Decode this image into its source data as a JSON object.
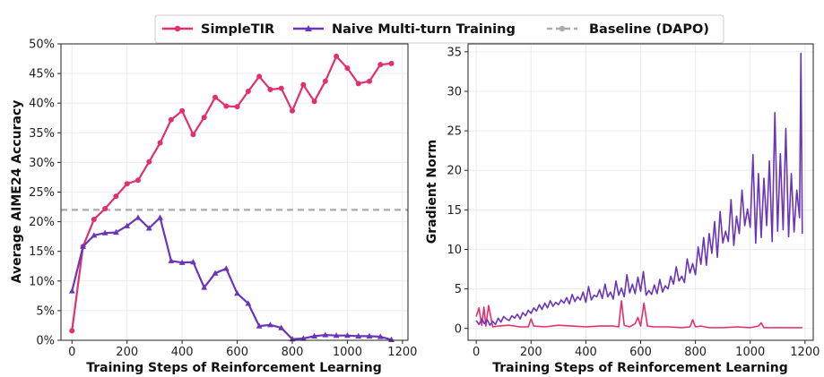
{
  "legend": {
    "items": [
      {
        "label": "SimpleTIR",
        "color": "#e0306e",
        "style": "line-marker-circle"
      },
      {
        "label": "Naive Multi-turn Training",
        "color": "#6a35b8",
        "style": "line-marker-triangle"
      },
      {
        "label": "Baseline (DAPO)",
        "color": "#aaaaaa",
        "style": "dashed-marker-circle"
      }
    ]
  },
  "chart_data": [
    {
      "type": "line",
      "xlabel": "Training Steps of Reinforcement Learning",
      "ylabel": "Average AIME24 Accuracy",
      "xlim": [
        -40,
        1220
      ],
      "ylim": [
        0,
        50
      ],
      "xticks": [
        0,
        200,
        400,
        600,
        800,
        1000,
        1200
      ],
      "yticks": [
        0,
        5,
        10,
        15,
        20,
        25,
        30,
        35,
        40,
        45,
        50
      ],
      "ytick_suffix": "%",
      "grid": true,
      "baseline": {
        "name": "Baseline (DAPO)",
        "value": 22.0,
        "color": "#aaaaaa"
      },
      "series": [
        {
          "name": "SimpleTIR",
          "color": "#e0306e",
          "marker": "circle",
          "x": [
            0,
            40,
            80,
            120,
            160,
            200,
            240,
            280,
            320,
            360,
            400,
            440,
            480,
            520,
            560,
            600,
            640,
            680,
            720,
            760,
            800,
            840,
            880,
            920,
            960,
            1000,
            1040,
            1080,
            1120,
            1160
          ],
          "y": [
            1.6,
            15.8,
            20.4,
            22.2,
            24.3,
            26.4,
            27.0,
            30.1,
            33.3,
            37.2,
            38.7,
            34.7,
            37.6,
            41.0,
            39.5,
            39.4,
            42.0,
            44.5,
            42.3,
            42.5,
            38.7,
            43.1,
            40.3,
            43.7,
            47.9,
            45.9,
            43.3,
            43.7,
            46.5,
            46.7
          ]
        },
        {
          "name": "Naive Multi-turn Training",
          "color": "#6a35b8",
          "marker": "triangle",
          "x": [
            0,
            40,
            80,
            120,
            160,
            200,
            240,
            280,
            320,
            360,
            400,
            440,
            480,
            520,
            560,
            600,
            640,
            680,
            720,
            760,
            800,
            840,
            880,
            920,
            960,
            1000,
            1040,
            1080,
            1120,
            1160
          ],
          "y": [
            8.3,
            15.8,
            17.7,
            18.1,
            18.2,
            19.3,
            20.7,
            18.9,
            20.7,
            13.4,
            13.1,
            13.2,
            8.9,
            11.3,
            12.1,
            7.9,
            6.2,
            2.4,
            2.6,
            2.1,
            0.2,
            0.3,
            0.7,
            0.9,
            0.8,
            0.8,
            0.7,
            0.7,
            0.6,
            0.1
          ]
        }
      ]
    },
    {
      "type": "line",
      "xlabel": "Training Steps of Reinforcement Learning",
      "ylabel": "Gradient Norm",
      "xlim": [
        -30,
        1230
      ],
      "ylim": [
        -1.5,
        36
      ],
      "xticks": [
        0,
        200,
        400,
        600,
        800,
        1000,
        1200
      ],
      "yticks": [
        0,
        5,
        10,
        15,
        20,
        25,
        30,
        35
      ],
      "grid": true,
      "series": [
        {
          "name": "SimpleTIR",
          "color": "#e0306e",
          "x": [
            0,
            10,
            20,
            28,
            35,
            45,
            60,
            80,
            120,
            160,
            190,
            200,
            210,
            250,
            300,
            350,
            400,
            450,
            500,
            520,
            530,
            540,
            560,
            580,
            590,
            600,
            612,
            625,
            650,
            700,
            750,
            780,
            790,
            800,
            820,
            850,
            900,
            950,
            1000,
            1030,
            1040,
            1050,
            1080,
            1120,
            1160,
            1190
          ],
          "y": [
            1.5,
            2.6,
            0.4,
            2.7,
            0.3,
            2.9,
            0.2,
            0.3,
            0.4,
            0.2,
            0.2,
            1.2,
            0.3,
            0.2,
            0.4,
            0.3,
            0.2,
            0.3,
            0.3,
            0.2,
            3.5,
            0.4,
            0.2,
            0.6,
            1.4,
            0.3,
            3.2,
            0.3,
            0.2,
            0.2,
            0.1,
            0.2,
            1.1,
            0.2,
            0.3,
            0.1,
            0.1,
            0.2,
            0.1,
            0.3,
            0.7,
            0.1,
            0.1,
            0.1,
            0.1,
            0.1
          ]
        },
        {
          "name": "Naive Multi-turn Training",
          "color": "#6a35b8",
          "x": [
            0,
            10,
            20,
            30,
            40,
            50,
            60,
            70,
            80,
            90,
            100,
            110,
            120,
            130,
            140,
            150,
            160,
            170,
            180,
            190,
            200,
            210,
            220,
            230,
            240,
            250,
            260,
            270,
            280,
            290,
            300,
            310,
            320,
            330,
            340,
            350,
            360,
            370,
            380,
            390,
            400,
            410,
            420,
            430,
            440,
            450,
            460,
            470,
            480,
            490,
            500,
            510,
            520,
            530,
            540,
            550,
            560,
            570,
            580,
            590,
            600,
            610,
            620,
            630,
            640,
            650,
            660,
            670,
            680,
            690,
            700,
            710,
            720,
            730,
            740,
            750,
            760,
            770,
            780,
            790,
            800,
            810,
            820,
            830,
            840,
            850,
            860,
            870,
            880,
            890,
            900,
            910,
            920,
            930,
            940,
            950,
            960,
            970,
            980,
            990,
            1000,
            1010,
            1020,
            1030,
            1040,
            1050,
            1060,
            1070,
            1080,
            1090,
            1100,
            1110,
            1120,
            1130,
            1140,
            1150,
            1160,
            1170,
            1180,
            1185,
            1190
          ],
          "y": [
            1.0,
            0.5,
            1.2,
            0.6,
            1.1,
            0.4,
            0.9,
            0.5,
            1.3,
            0.8,
            1.5,
            1.2,
            1.0,
            1.6,
            1.3,
            1.8,
            1.2,
            2.0,
            1.6,
            2.3,
            1.9,
            2.6,
            2.2,
            3.0,
            2.4,
            3.2,
            2.6,
            3.5,
            2.8,
            3.3,
            3.0,
            3.6,
            3.2,
            3.9,
            3.1,
            4.3,
            3.4,
            4.0,
            3.6,
            4.6,
            3.3,
            5.3,
            3.6,
            4.2,
            4.0,
            4.9,
            3.8,
            5.6,
            4.0,
            4.6,
            3.7,
            6.0,
            4.2,
            5.1,
            4.0,
            6.8,
            4.5,
            5.6,
            4.4,
            6.5,
            4.7,
            7.2,
            4.2,
            4.8,
            4.3,
            5.5,
            4.4,
            6.2,
            4.6,
            5.4,
            5.0,
            6.6,
            5.6,
            7.8,
            6.0,
            6.6,
            5.8,
            8.8,
            7.0,
            8.2,
            6.8,
            10.3,
            8.1,
            11.5,
            8.0,
            12.0,
            9.5,
            13.5,
            9.0,
            14.8,
            10.8,
            12.3,
            11.0,
            16.3,
            10.5,
            14.2,
            12.0,
            17.5,
            13.0,
            15.1,
            12.8,
            22.0,
            10.8,
            19.6,
            11.5,
            19.0,
            13.0,
            21.2,
            11.0,
            27.3,
            12.3,
            22.1,
            12.5,
            25.3,
            11.6,
            19.6,
            12.2,
            17.5,
            14.0,
            34.8,
            12.0
          ]
        }
      ]
    }
  ]
}
